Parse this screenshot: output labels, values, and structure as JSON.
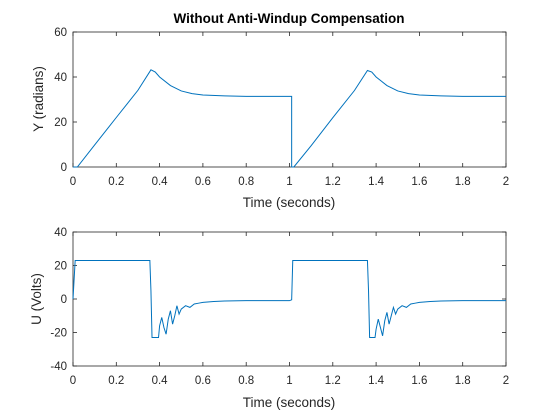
{
  "colors": {
    "series": "#0072BD",
    "axes": "#262626",
    "background": "#ffffff"
  },
  "chart_data": [
    {
      "type": "line",
      "title": "Without Anti-Windup Compensation",
      "xlabel": "Time (seconds)",
      "ylabel": "Y (radians)",
      "xlim": [
        0,
        2
      ],
      "ylim": [
        0,
        60
      ],
      "xticks": [
        "0",
        "0.2",
        "0.4",
        "0.6",
        "0.8",
        "1",
        "1.2",
        "1.4",
        "1.6",
        "1.8",
        "2"
      ],
      "yticks": [
        "0",
        "20",
        "40",
        "60"
      ],
      "grid": false,
      "series": [
        {
          "x": [
            0,
            0.02,
            0.1,
            0.2,
            0.3,
            0.36,
            0.38,
            0.4,
            0.45,
            0.5,
            0.55,
            0.6,
            0.7,
            0.8,
            0.9,
            1.0,
            1.01,
            1.01,
            1.02,
            1.1,
            1.2,
            1.3,
            1.36,
            1.38,
            1.4,
            1.45,
            1.5,
            1.55,
            1.6,
            1.7,
            1.8,
            1.9,
            2.0
          ],
          "y": [
            0,
            0,
            9.8,
            22.0,
            34.1,
            43.2,
            42.2,
            40.0,
            36.2,
            33.8,
            32.6,
            32.0,
            31.6,
            31.4,
            31.4,
            31.4,
            31.4,
            0,
            0,
            9.5,
            21.9,
            34.0,
            42.9,
            42.2,
            40.0,
            36.2,
            33.8,
            32.6,
            32.0,
            31.6,
            31.4,
            31.4,
            31.4
          ]
        }
      ]
    },
    {
      "type": "line",
      "title": "",
      "xlabel": "Time (seconds)",
      "ylabel": "U (Volts)",
      "xlim": [
        0,
        2
      ],
      "ylim": [
        -40,
        40
      ],
      "xticks": [
        "0",
        "0.2",
        "0.4",
        "0.6",
        "0.8",
        "1",
        "1.2",
        "1.4",
        "1.6",
        "1.8",
        "2"
      ],
      "yticks": [
        "-40",
        "-20",
        "0",
        "20",
        "40"
      ],
      "grid": false,
      "series": [
        {
          "x": [
            0,
            0.01,
            0.355,
            0.36,
            0.365,
            0.395,
            0.4,
            0.41,
            0.42,
            0.43,
            0.44,
            0.45,
            0.46,
            0.47,
            0.48,
            0.49,
            0.5,
            0.52,
            0.54,
            0.56,
            0.58,
            0.6,
            0.65,
            0.7,
            0.8,
            0.9,
            1.0,
            1.01,
            1.015,
            1.36,
            1.365,
            1.37,
            1.395,
            1.4,
            1.41,
            1.42,
            1.43,
            1.44,
            1.45,
            1.46,
            1.47,
            1.48,
            1.49,
            1.5,
            1.52,
            1.54,
            1.56,
            1.58,
            1.6,
            1.65,
            1.7,
            1.8,
            1.9,
            2.0
          ],
          "y": [
            0,
            23,
            23,
            5,
            -23,
            -23,
            -16,
            -11,
            -17,
            -21,
            -12,
            -7,
            -15,
            -10,
            -4,
            -9,
            -6,
            -4,
            -5,
            -3,
            -2.5,
            -2,
            -1.5,
            -1.2,
            -1.0,
            -1.0,
            -1.0,
            -0.5,
            23,
            23,
            5,
            -23,
            -23,
            -18,
            -12,
            -17,
            -22,
            -13,
            -8,
            -15,
            -10,
            -5,
            -9,
            -6,
            -4,
            -5,
            -3,
            -2.5,
            -2,
            -1.5,
            -1.2,
            -1.0,
            -1.0,
            -1.0
          ]
        }
      ]
    }
  ]
}
